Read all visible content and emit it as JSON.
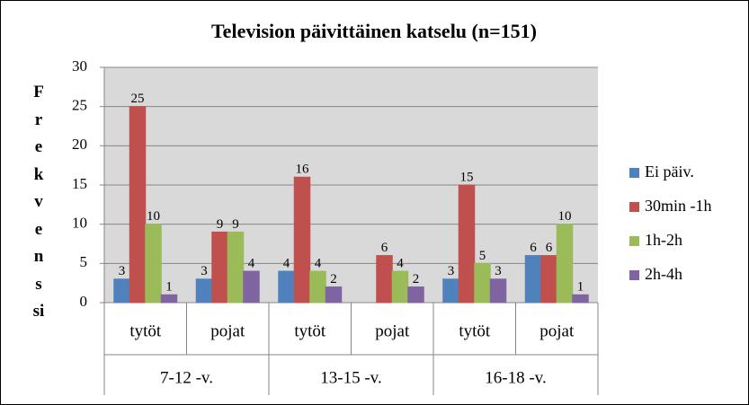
{
  "chart_data": {
    "type": "bar",
    "title": "Television päivittäinen katselu (n=151)",
    "y_label": "Frekvenssi",
    "categories": [
      "tytöt",
      "pojat",
      "tytöt",
      "pojat",
      "tytöt",
      "pojat"
    ],
    "groups": [
      "7-12 -v.",
      "13-15 -v.",
      "16-18 -v."
    ],
    "series": [
      {
        "name": "Ei päiv.",
        "color": "#4f81bd",
        "values": [
          3,
          3,
          4,
          null,
          3,
          6
        ]
      },
      {
        "name": "30min -1h",
        "color": "#c0504d",
        "values": [
          25,
          9,
          16,
          6,
          15,
          6
        ]
      },
      {
        "name": "1h-2h",
        "color": "#9bbb59",
        "values": [
          10,
          9,
          4,
          4,
          5,
          10
        ]
      },
      {
        "name": "2h-4h",
        "color": "#8064a2",
        "values": [
          1,
          4,
          2,
          2,
          3,
          1
        ]
      }
    ],
    "ylim": [
      0,
      30
    ],
    "yticks": [
      0,
      5,
      10,
      15,
      20,
      25,
      30
    ],
    "grid": true,
    "legend": "right"
  }
}
